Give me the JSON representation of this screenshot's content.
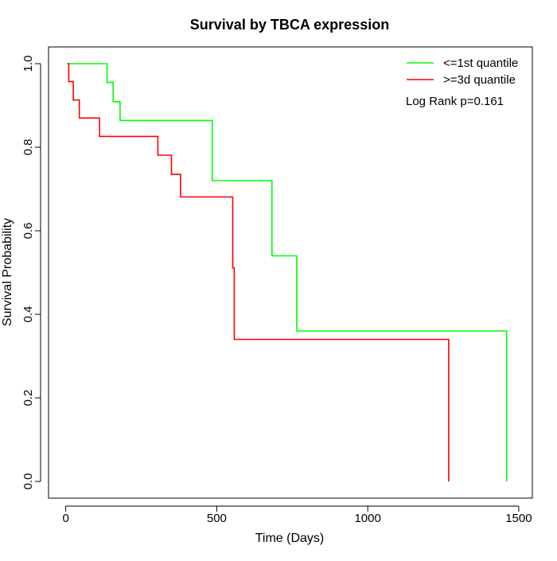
{
  "chart_data": {
    "type": "line",
    "title": "Survival by TBCA expression",
    "xlabel": "Time (Days)",
    "ylabel": "Survival Probability",
    "xlim": [
      -57,
      1545
    ],
    "ylim": [
      -0.04,
      1.04
    ],
    "xticks": [
      0,
      500,
      1000,
      1500
    ],
    "yticks": [
      0.0,
      0.2,
      0.4,
      0.6,
      0.8,
      1.0
    ],
    "xtick_labels": [
      "0",
      "500",
      "1000",
      "1500"
    ],
    "ytick_labels": [
      "0.0",
      "0.2",
      "0.4",
      "0.6",
      "0.8",
      "1.0"
    ],
    "grid": false,
    "legend_position": "top-right",
    "annotation": "Log Rank p=0.161",
    "series": [
      {
        "name": "<=1st quantile",
        "color": "#00ff00",
        "x": [
          5,
          137,
          157,
          180,
          485,
          683,
          765,
          1460,
          1460
        ],
        "y": [
          1.0,
          0.955,
          0.909,
          0.864,
          0.72,
          0.54,
          0.36,
          0.36,
          0.0
        ]
      },
      {
        "name": ">=3d quantile",
        "color": "#ff0000",
        "x": [
          5,
          10,
          25,
          45,
          112,
          305,
          350,
          380,
          553,
          558,
          1268,
          1268
        ],
        "y": [
          1.0,
          0.957,
          0.913,
          0.87,
          0.826,
          0.781,
          0.735,
          0.681,
          0.511,
          0.34,
          0.34,
          0.0
        ]
      }
    ]
  }
}
